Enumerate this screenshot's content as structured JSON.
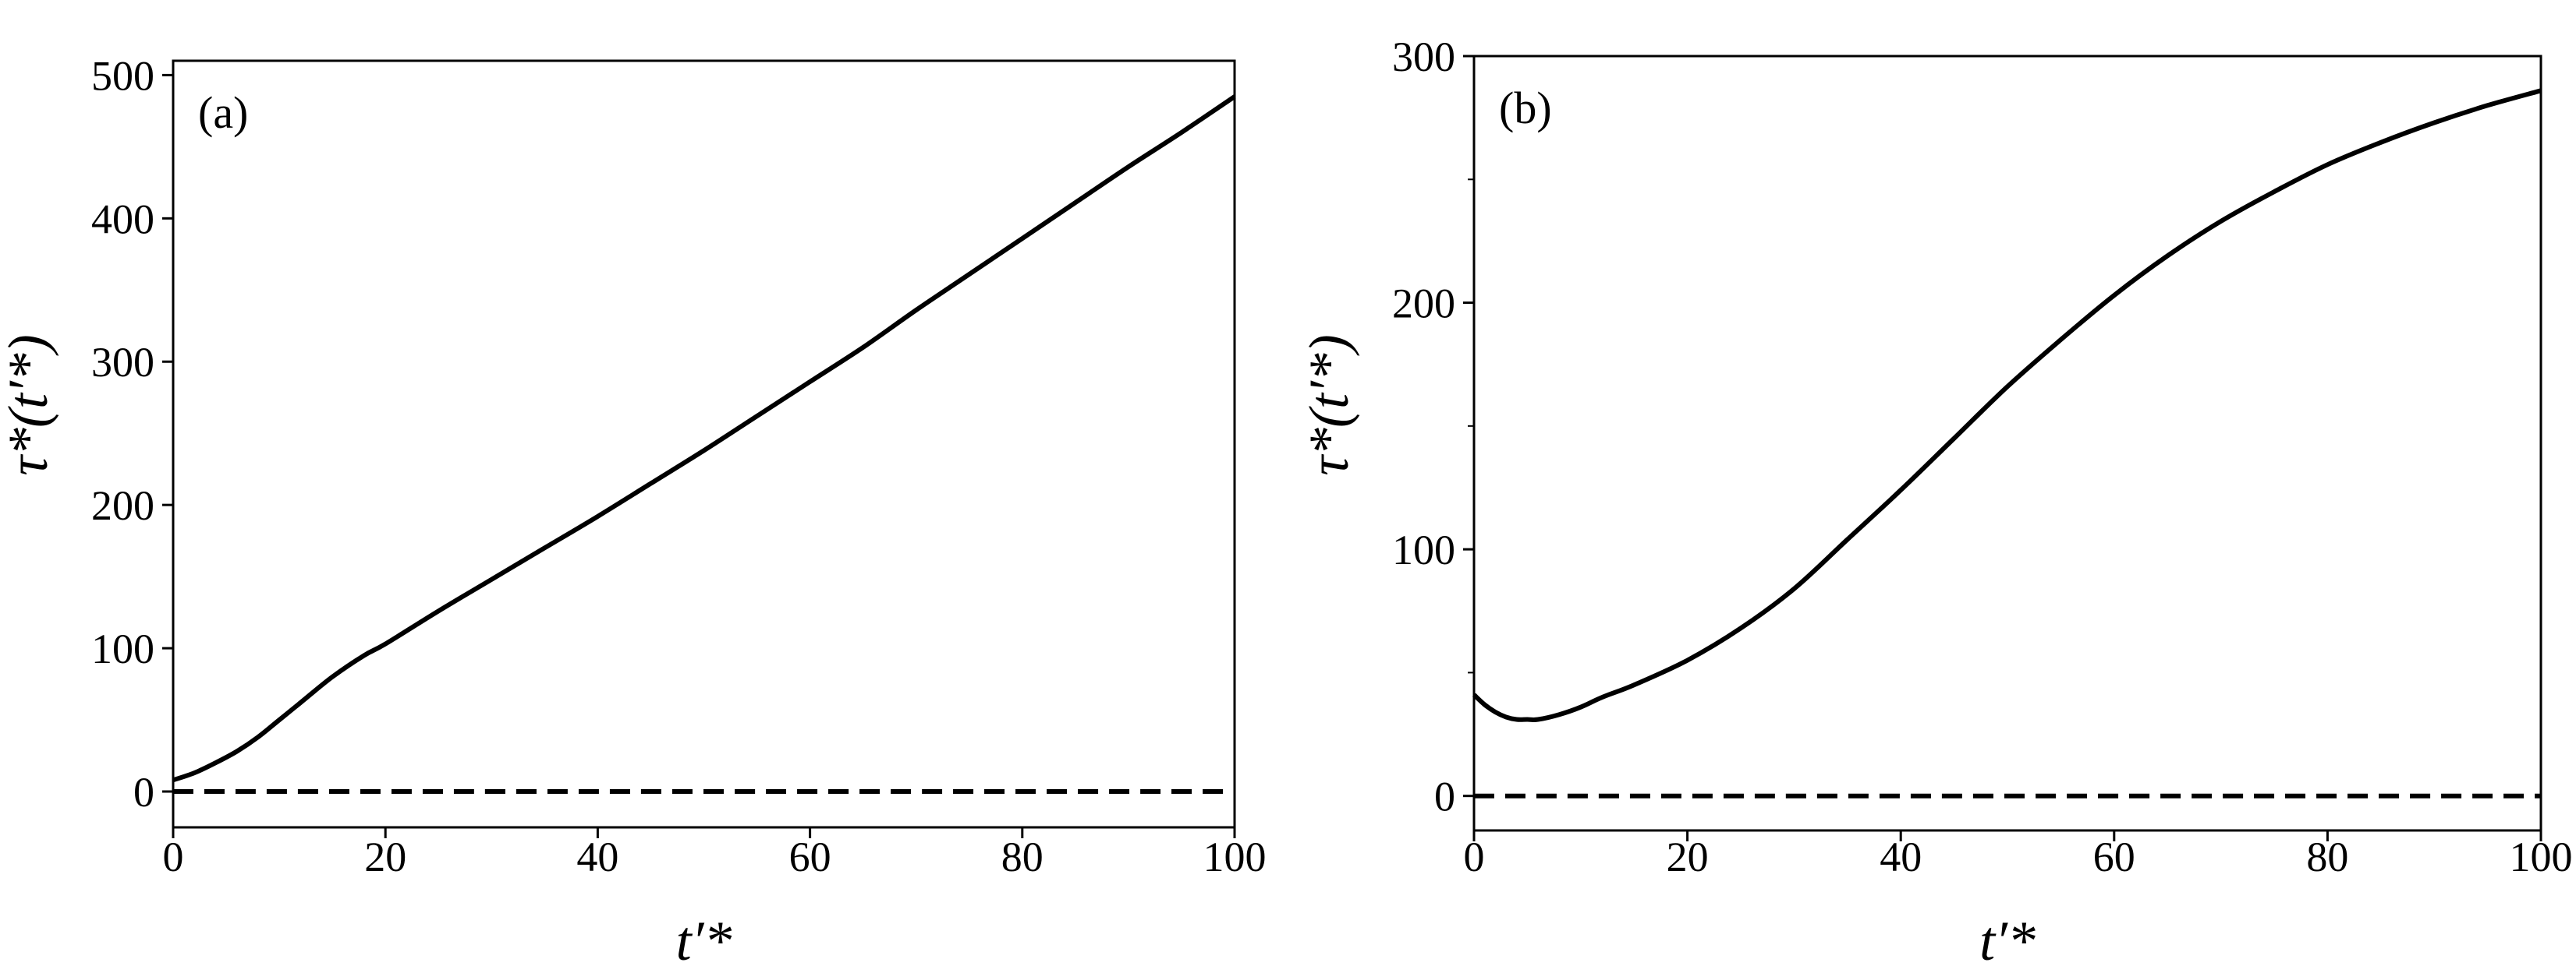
{
  "chart_data": [
    {
      "type": "line",
      "panel_label": "(a)",
      "xlabel": "t′*",
      "ylabel": "τ*(t′*)",
      "xlim": [
        0,
        100
      ],
      "ylim": [
        -25,
        510
      ],
      "xticks": [
        0,
        20,
        40,
        60,
        80,
        100
      ],
      "xtick_labels": [
        "0",
        "20",
        "40",
        "60",
        "80",
        "100"
      ],
      "yticks": [
        0,
        100,
        200,
        300,
        400,
        500
      ],
      "ytick_labels": [
        "0",
        "100",
        "200",
        "300",
        "400",
        "500"
      ],
      "grid": false,
      "series": [
        {
          "style": "solid",
          "color": "#000000",
          "x": [
            0,
            2,
            4,
            6,
            8,
            10,
            12,
            15,
            18,
            20,
            25,
            30,
            35,
            40,
            45,
            50,
            55,
            60,
            65,
            70,
            75,
            80,
            85,
            90,
            95,
            100
          ],
          "y": [
            8,
            13,
            20,
            28,
            38,
            50,
            62,
            80,
            95,
            103,
            126,
            148,
            170,
            192,
            215,
            238,
            262,
            286,
            310,
            336,
            361,
            386,
            411,
            436,
            460,
            485
          ]
        },
        {
          "style": "dashed",
          "color": "#000000",
          "x": [
            0,
            100
          ],
          "y": [
            0,
            0
          ]
        }
      ]
    },
    {
      "type": "line",
      "panel_label": "(b)",
      "xlabel": "t′*",
      "ylabel": "τ*(t′*)",
      "xlim": [
        0,
        100
      ],
      "ylim": [
        -14,
        300
      ],
      "xticks": [
        0,
        20,
        40,
        60,
        80,
        100
      ],
      "xtick_labels": [
        "0",
        "20",
        "40",
        "60",
        "80",
        "100"
      ],
      "yticks": [
        0,
        100,
        200,
        300
      ],
      "ytick_labels": [
        "0",
        "100",
        "200",
        "300"
      ],
      "minor_yticks": [
        50,
        150,
        250
      ],
      "grid": false,
      "series": [
        {
          "style": "solid",
          "color": "#000000",
          "x": [
            0,
            1,
            2,
            3,
            4,
            5,
            6,
            8,
            10,
            12,
            15,
            20,
            25,
            30,
            35,
            40,
            45,
            50,
            55,
            60,
            65,
            70,
            75,
            80,
            85,
            90,
            95,
            100
          ],
          "y": [
            41,
            37,
            34,
            32,
            31,
            31,
            31,
            33,
            36,
            40,
            45,
            55,
            68,
            84,
            104,
            124,
            145,
            166,
            185,
            203,
            219,
            233,
            245,
            256,
            265,
            273,
            280,
            286
          ]
        },
        {
          "style": "dashed",
          "color": "#000000",
          "x": [
            0,
            100
          ],
          "y": [
            0,
            0
          ]
        }
      ]
    }
  ]
}
